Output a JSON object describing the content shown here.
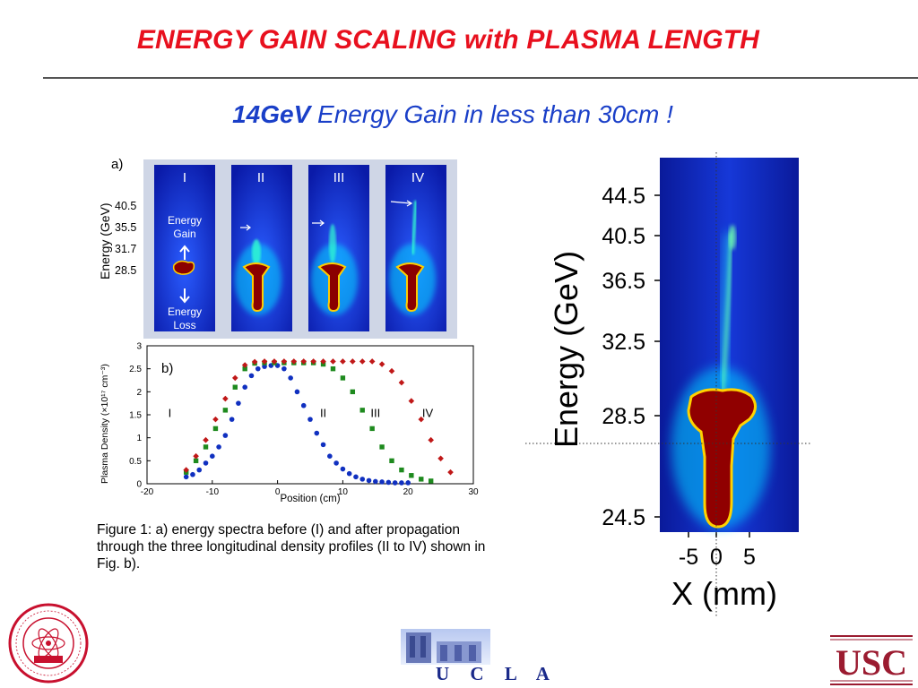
{
  "title": "ENERGY GAIN SCALING with PLASMA LENGTH",
  "subtitle": {
    "bold": "14GeV",
    "rest": " Energy Gain in less than 30cm !"
  },
  "panel_a": {
    "label": "a)",
    "ylabel": "Energy (GeV)",
    "yticks": [
      "40.5",
      "35.5",
      "31.7",
      "28.5"
    ],
    "strips": [
      "I",
      "II",
      "III",
      "IV"
    ],
    "energy_gain": [
      "Energy",
      "Gain"
    ],
    "energy_loss": [
      "Energy",
      "Loss"
    ]
  },
  "caption": "Figure 1: a) energy spectra before (I) and after propagation through the three longitudinal density profiles (II to IV) shown in Fig. b).",
  "chart_data": {
    "type": "scatter",
    "panel_label": "b)",
    "xlabel": "Position (cm)",
    "ylabel": "Plasma Density (×10¹⁷ cm⁻³)",
    "xlim": [
      -20,
      30
    ],
    "ylim": [
      0,
      3
    ],
    "xticks": [
      -20,
      -10,
      0,
      10,
      20,
      30
    ],
    "yticks": [
      0,
      0.5,
      1,
      1.5,
      2,
      2.5,
      3
    ],
    "grid": false,
    "curve_labels": [
      {
        "text": "I",
        "x": -16.5,
        "y": 1.45
      },
      {
        "text": "II",
        "x": 7,
        "y": 1.45
      },
      {
        "text": "III",
        "x": 15,
        "y": 1.45
      },
      {
        "text": "IV",
        "x": 23,
        "y": 1.45
      }
    ],
    "series": [
      {
        "color": "#1030c0",
        "shape": "circle",
        "x": [
          -14,
          -13,
          -12,
          -11,
          -10,
          -9,
          -8,
          -7,
          -6,
          -5,
          -4,
          -3,
          -2,
          -1,
          0,
          1,
          2,
          3,
          4,
          5,
          6,
          7,
          8,
          9,
          10,
          11,
          12,
          13,
          14,
          15,
          16,
          17,
          18,
          19,
          20
        ],
        "y": [
          0.15,
          0.2,
          0.3,
          0.45,
          0.6,
          0.8,
          1.05,
          1.4,
          1.75,
          2.1,
          2.35,
          2.5,
          2.55,
          2.57,
          2.57,
          2.5,
          2.3,
          2.0,
          1.7,
          1.4,
          1.1,
          0.85,
          0.6,
          0.45,
          0.32,
          0.22,
          0.15,
          0.1,
          0.07,
          0.05,
          0.04,
          0.03,
          0.02,
          0.02,
          0.02
        ]
      },
      {
        "color": "#1e8a1e",
        "shape": "square",
        "x": [
          -14,
          -12.5,
          -11,
          -9.5,
          -8,
          -6.5,
          -5,
          -3.5,
          -2,
          -0.5,
          1,
          2.5,
          4,
          5.5,
          7,
          8.5,
          10,
          11.5,
          13,
          14.5,
          16,
          17.5,
          19,
          20.5,
          22,
          23.5
        ],
        "y": [
          0.25,
          0.5,
          0.8,
          1.2,
          1.6,
          2.1,
          2.5,
          2.62,
          2.63,
          2.63,
          2.63,
          2.63,
          2.63,
          2.63,
          2.6,
          2.5,
          2.3,
          2.0,
          1.6,
          1.2,
          0.8,
          0.5,
          0.3,
          0.18,
          0.1,
          0.06
        ]
      },
      {
        "color": "#c01818",
        "shape": "diamond",
        "x": [
          -14,
          -12.5,
          -11,
          -9.5,
          -8,
          -6.5,
          -5,
          -3.5,
          -2,
          -0.5,
          1,
          2.5,
          4,
          5.5,
          7,
          8.5,
          10,
          11.5,
          13,
          14.5,
          16,
          17.5,
          19,
          20.5,
          22,
          23.5,
          25,
          26.5
        ],
        "y": [
          0.3,
          0.6,
          0.95,
          1.4,
          1.85,
          2.3,
          2.58,
          2.65,
          2.66,
          2.66,
          2.66,
          2.66,
          2.66,
          2.66,
          2.66,
          2.66,
          2.66,
          2.66,
          2.66,
          2.66,
          2.6,
          2.45,
          2.2,
          1.8,
          1.4,
          0.95,
          0.55,
          0.25
        ]
      }
    ]
  },
  "right_image": {
    "ylabel": "Energy (GeV)",
    "xlabel": "X (mm)",
    "yticks": [
      "44.5",
      "40.5",
      "36.5",
      "32.5",
      "28.5",
      "24.5"
    ],
    "xticks": [
      "-5",
      "0",
      "5"
    ]
  },
  "footer": {
    "slac_seal_text": "STANFORD LINEAR ACCELERATOR CENTER",
    "slac_seal_sub": "ESTABLISHED 1962",
    "slac_seal_doe": "D.O.E.",
    "ucla": "U C L A",
    "usc": "USC"
  }
}
